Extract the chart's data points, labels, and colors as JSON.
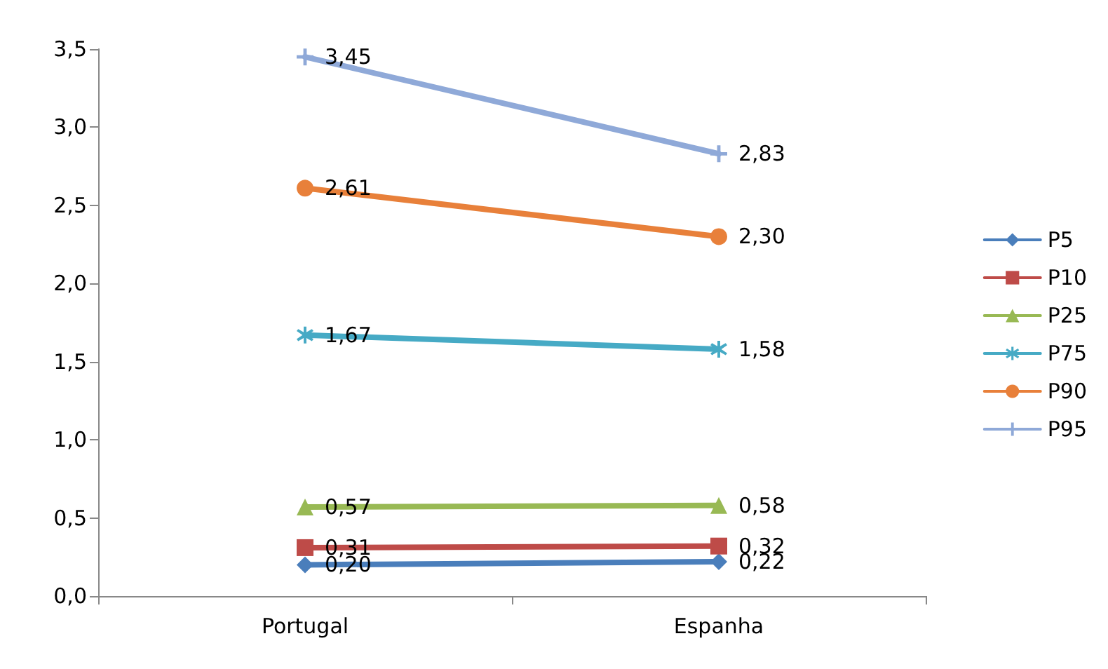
{
  "chart_data": {
    "type": "line",
    "categories": [
      "Portugal",
      "Espanha"
    ],
    "series": [
      {
        "name": "P5",
        "color": "#4a7ebb",
        "marker": "diamond",
        "values": [
          0.2,
          0.22
        ],
        "value_labels": [
          "0,20",
          "0,22"
        ]
      },
      {
        "name": "P10",
        "color": "#be4b48",
        "marker": "square",
        "values": [
          0.31,
          0.32
        ],
        "value_labels": [
          "0,31",
          "0,32"
        ]
      },
      {
        "name": "P25",
        "color": "#98b954",
        "marker": "triangle",
        "values": [
          0.57,
          0.58
        ],
        "value_labels": [
          "0,57",
          "0,58"
        ]
      },
      {
        "name": "P75",
        "color": "#46aac5",
        "marker": "star",
        "values": [
          1.67,
          1.58
        ],
        "value_labels": [
          "1,67",
          "1,58"
        ]
      },
      {
        "name": "P90",
        "color": "#e8803a",
        "marker": "circle",
        "values": [
          2.61,
          2.3
        ],
        "value_labels": [
          "2,61",
          "2,30"
        ]
      },
      {
        "name": "P95",
        "color": "#8fa9d8",
        "marker": "cross",
        "values": [
          3.45,
          2.83
        ],
        "value_labels": [
          "3,45",
          "2,83"
        ]
      }
    ],
    "ylim": [
      0,
      3.5
    ],
    "yticks": [
      {
        "value": 0,
        "label": "0,0"
      },
      {
        "value": 0.5,
        "label": "0,5"
      },
      {
        "value": 1,
        "label": "1,0"
      },
      {
        "value": 1.5,
        "label": "1,5"
      },
      {
        "value": 2,
        "label": "2,0"
      },
      {
        "value": 2.5,
        "label": "2,5"
      },
      {
        "value": 3,
        "label": "3,0"
      },
      {
        "value": 3.5,
        "label": "3,5"
      }
    ],
    "grid": false,
    "legend": "right",
    "line_style": "solid"
  }
}
